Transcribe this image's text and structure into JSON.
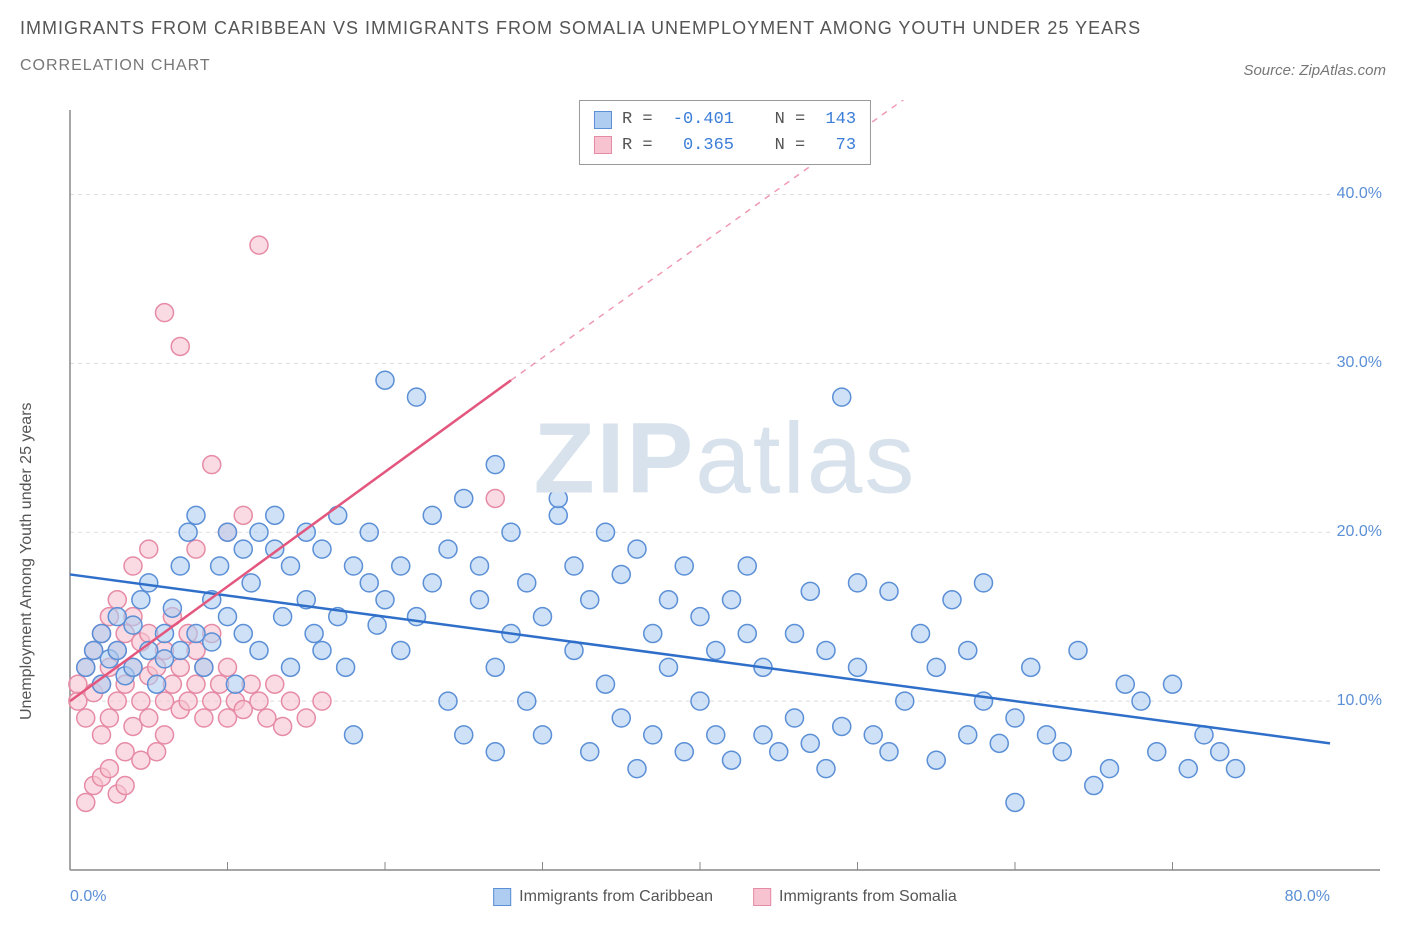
{
  "title": "IMMIGRANTS FROM CARIBBEAN VS IMMIGRANTS FROM SOMALIA UNEMPLOYMENT AMONG YOUTH UNDER 25 YEARS",
  "subtitle": "CORRELATION CHART",
  "source": "Source: ZipAtlas.com",
  "y_axis_label": "Unemployment Among Youth under 25 years",
  "watermark_a": "ZIP",
  "watermark_b": "atlas",
  "chart": {
    "type": "scatter",
    "background_color": "#ffffff",
    "grid_color": "#dddddd",
    "axis_color": "#888888",
    "xlim": [
      0,
      80
    ],
    "ylim": [
      0,
      45
    ],
    "x_ticks": [
      0,
      80
    ],
    "x_tick_labels": [
      "0.0%",
      "80.0%"
    ],
    "x_minor_ticks": [
      10,
      20,
      30,
      40,
      50,
      60,
      70
    ],
    "y_ticks": [
      10,
      20,
      30,
      40
    ],
    "y_tick_labels": [
      "10.0%",
      "20.0%",
      "30.0%",
      "40.0%"
    ],
    "marker_radius": 9,
    "marker_stroke_width": 1.5,
    "trend_line_width": 2.5,
    "series": {
      "caribbean": {
        "label": "Immigrants from Caribbean",
        "fill": "#aecdf0",
        "stroke": "#5b8fd6",
        "trend_color": "#2f6fc9",
        "trend_start": [
          0,
          17.5
        ],
        "trend_end": [
          80,
          7.5
        ],
        "R": "-0.401",
        "N": "143",
        "points": [
          [
            1,
            12
          ],
          [
            1.5,
            13
          ],
          [
            2,
            11
          ],
          [
            2,
            14
          ],
          [
            2.5,
            12.5
          ],
          [
            3,
            15
          ],
          [
            3,
            13
          ],
          [
            3.5,
            11.5
          ],
          [
            4,
            14.5
          ],
          [
            4,
            12
          ],
          [
            4.5,
            16
          ],
          [
            5,
            13
          ],
          [
            5,
            17
          ],
          [
            5.5,
            11
          ],
          [
            6,
            12.5
          ],
          [
            6,
            14
          ],
          [
            6.5,
            15.5
          ],
          [
            7,
            13
          ],
          [
            7,
            18
          ],
          [
            7.5,
            20
          ],
          [
            8,
            21
          ],
          [
            8,
            14
          ],
          [
            8.5,
            12
          ],
          [
            9,
            16
          ],
          [
            9,
            13.5
          ],
          [
            9.5,
            18
          ],
          [
            10,
            15
          ],
          [
            10,
            20
          ],
          [
            10.5,
            11
          ],
          [
            11,
            19
          ],
          [
            11,
            14
          ],
          [
            11.5,
            17
          ],
          [
            12,
            20
          ],
          [
            12,
            13
          ],
          [
            13,
            19
          ],
          [
            13,
            21
          ],
          [
            13.5,
            15
          ],
          [
            14,
            18
          ],
          [
            14,
            12
          ],
          [
            15,
            20
          ],
          [
            15,
            16
          ],
          [
            15.5,
            14
          ],
          [
            16,
            19
          ],
          [
            16,
            13
          ],
          [
            17,
            21
          ],
          [
            17,
            15
          ],
          [
            17.5,
            12
          ],
          [
            18,
            18
          ],
          [
            18,
            8
          ],
          [
            19,
            17
          ],
          [
            19,
            20
          ],
          [
            19.5,
            14.5
          ],
          [
            20,
            29
          ],
          [
            20,
            16
          ],
          [
            21,
            18
          ],
          [
            21,
            13
          ],
          [
            22,
            28
          ],
          [
            22,
            15
          ],
          [
            23,
            21
          ],
          [
            23,
            17
          ],
          [
            24,
            10
          ],
          [
            24,
            19
          ],
          [
            25,
            22
          ],
          [
            25,
            8
          ],
          [
            26,
            16
          ],
          [
            26,
            18
          ],
          [
            27,
            24
          ],
          [
            27,
            12
          ],
          [
            27,
            7
          ],
          [
            28,
            20
          ],
          [
            28,
            14
          ],
          [
            29,
            10
          ],
          [
            29,
            17
          ],
          [
            30,
            15
          ],
          [
            30,
            8
          ],
          [
            31,
            21
          ],
          [
            31,
            22
          ],
          [
            32,
            13
          ],
          [
            32,
            18
          ],
          [
            33,
            7
          ],
          [
            33,
            16
          ],
          [
            34,
            20
          ],
          [
            34,
            11
          ],
          [
            35,
            17.5
          ],
          [
            35,
            9
          ],
          [
            36,
            6
          ],
          [
            36,
            19
          ],
          [
            37,
            14
          ],
          [
            37,
            8
          ],
          [
            38,
            16
          ],
          [
            38,
            12
          ],
          [
            39,
            18
          ],
          [
            39,
            7
          ],
          [
            40,
            15
          ],
          [
            40,
            10
          ],
          [
            41,
            13
          ],
          [
            41,
            8
          ],
          [
            42,
            16
          ],
          [
            42,
            6.5
          ],
          [
            43,
            14
          ],
          [
            43,
            18
          ],
          [
            44,
            8
          ],
          [
            44,
            12
          ],
          [
            45,
            7
          ],
          [
            46,
            14
          ],
          [
            46,
            9
          ],
          [
            47,
            16.5
          ],
          [
            47,
            7.5
          ],
          [
            48,
            13
          ],
          [
            48,
            6
          ],
          [
            49,
            8.5
          ],
          [
            49,
            28
          ],
          [
            50,
            12
          ],
          [
            50,
            17
          ],
          [
            51,
            8
          ],
          [
            52,
            16.5
          ],
          [
            52,
            7
          ],
          [
            53,
            10
          ],
          [
            54,
            14
          ],
          [
            55,
            6.5
          ],
          [
            55,
            12
          ],
          [
            56,
            16
          ],
          [
            57,
            8
          ],
          [
            57,
            13
          ],
          [
            58,
            10
          ],
          [
            58,
            17
          ],
          [
            59,
            7.5
          ],
          [
            60,
            9
          ],
          [
            60,
            4
          ],
          [
            61,
            12
          ],
          [
            62,
            8
          ],
          [
            63,
            7
          ],
          [
            64,
            13
          ],
          [
            65,
            5
          ],
          [
            66,
            6
          ],
          [
            67,
            11
          ],
          [
            68,
            10
          ],
          [
            69,
            7
          ],
          [
            70,
            11
          ],
          [
            71,
            6
          ],
          [
            72,
            8
          ],
          [
            73,
            7
          ],
          [
            74,
            6
          ]
        ]
      },
      "somalia": {
        "label": "Immigrants from Somalia",
        "fill": "#f7c3d0",
        "stroke": "#e68ba5",
        "trend_color": "#e3577e",
        "trend_start": [
          0,
          10
        ],
        "trend_end": [
          28,
          29
        ],
        "trend_dash_end": [
          58,
          49
        ],
        "R": " 0.365",
        "N": " 73",
        "points": [
          [
            0.5,
            10
          ],
          [
            0.5,
            11
          ],
          [
            1,
            9
          ],
          [
            1,
            12
          ],
          [
            1,
            4
          ],
          [
            1.5,
            10.5
          ],
          [
            1.5,
            13
          ],
          [
            1.5,
            5
          ],
          [
            2,
            11
          ],
          [
            2,
            14
          ],
          [
            2,
            8
          ],
          [
            2,
            5.5
          ],
          [
            2.5,
            12
          ],
          [
            2.5,
            15
          ],
          [
            2.5,
            9
          ],
          [
            2.5,
            6
          ],
          [
            3,
            13
          ],
          [
            3,
            10
          ],
          [
            3,
            4.5
          ],
          [
            3,
            16
          ],
          [
            3.5,
            11
          ],
          [
            3.5,
            14
          ],
          [
            3.5,
            7
          ],
          [
            3.5,
            5
          ],
          [
            4,
            12
          ],
          [
            4,
            15
          ],
          [
            4,
            8.5
          ],
          [
            4,
            18
          ],
          [
            4.5,
            10
          ],
          [
            4.5,
            13.5
          ],
          [
            4.5,
            6.5
          ],
          [
            5,
            11.5
          ],
          [
            5,
            14
          ],
          [
            5,
            9
          ],
          [
            5,
            19
          ],
          [
            5.5,
            12
          ],
          [
            5.5,
            7
          ],
          [
            6,
            13
          ],
          [
            6,
            10
          ],
          [
            6,
            33
          ],
          [
            6,
            8
          ],
          [
            6.5,
            15
          ],
          [
            6.5,
            11
          ],
          [
            7,
            12
          ],
          [
            7,
            9.5
          ],
          [
            7,
            31
          ],
          [
            7.5,
            14
          ],
          [
            7.5,
            10
          ],
          [
            8,
            13
          ],
          [
            8,
            11
          ],
          [
            8,
            19
          ],
          [
            8.5,
            12
          ],
          [
            8.5,
            9
          ],
          [
            9,
            14
          ],
          [
            9,
            10
          ],
          [
            9,
            24
          ],
          [
            9.5,
            11
          ],
          [
            10,
            20
          ],
          [
            10,
            9
          ],
          [
            10,
            12
          ],
          [
            10.5,
            10
          ],
          [
            11,
            21
          ],
          [
            11,
            9.5
          ],
          [
            11.5,
            11
          ],
          [
            12,
            10
          ],
          [
            12,
            37
          ],
          [
            12.5,
            9
          ],
          [
            13,
            11
          ],
          [
            13.5,
            8.5
          ],
          [
            14,
            10
          ],
          [
            15,
            9
          ],
          [
            16,
            10
          ],
          [
            27,
            22
          ]
        ]
      }
    }
  }
}
